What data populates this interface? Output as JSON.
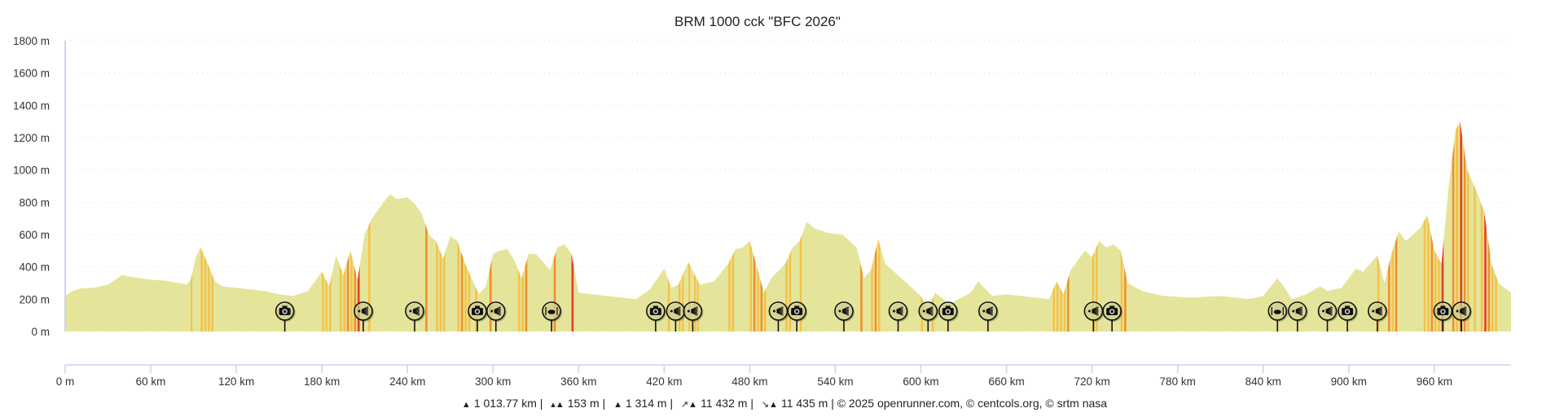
{
  "colors": {
    "fill": "#e4e59a",
    "mild": "#f4c24a",
    "steep": "#f0902c",
    "very_steep": "#e63e26",
    "axis": "#c9d5ee",
    "grid": "#dddddd"
  },
  "chart_data": {
    "type": "area",
    "title": "BRM 1000 cck \"BFC 2026\"",
    "xlabel": "",
    "ylabel": "",
    "xlim": [
      0,
      1013.77
    ],
    "ylim": [
      0,
      1800
    ],
    "grid": true,
    "xticks": [
      0,
      60,
      120,
      180,
      240,
      300,
      360,
      420,
      480,
      540,
      600,
      660,
      720,
      780,
      840,
      900,
      960
    ],
    "xtick_labels": [
      "0 m",
      "60 km",
      "120 km",
      "180 km",
      "240 km",
      "300 km",
      "360 km",
      "420 km",
      "480 km",
      "540 km",
      "600 km",
      "660 km",
      "720 km",
      "780 km",
      "840 km",
      "900 km",
      "960 km"
    ],
    "yticks": [
      0,
      200,
      400,
      600,
      800,
      1000,
      1200,
      1400,
      1600,
      1800
    ],
    "ytick_labels": [
      "0 m",
      "200 m",
      "400 m",
      "600 m",
      "800 m",
      "1000 m",
      "1200 m",
      "1400 m",
      "1600 m",
      "1800 m"
    ],
    "x": [
      0,
      5,
      10,
      20,
      30,
      40,
      45,
      60,
      70,
      80,
      85,
      88,
      92,
      95,
      100,
      105,
      110,
      120,
      140,
      150,
      160,
      170,
      180,
      185,
      190,
      195,
      200,
      205,
      210,
      215,
      220,
      225,
      228,
      232,
      240,
      245,
      250,
      255,
      260,
      265,
      270,
      275,
      280,
      290,
      295,
      300,
      305,
      310,
      315,
      320,
      325,
      330,
      340,
      345,
      350,
      355,
      360,
      380,
      400,
      410,
      420,
      425,
      430,
      437,
      445,
      455,
      465,
      470,
      475,
      480,
      485,
      490,
      495,
      505,
      510,
      515,
      520,
      525,
      535,
      545,
      555,
      560,
      565,
      570,
      575,
      585,
      595,
      600,
      605,
      610,
      620,
      635,
      640,
      650,
      660,
      680,
      690,
      695,
      700,
      705,
      710,
      715,
      720,
      725,
      730,
      735,
      740,
      745,
      755,
      770,
      790,
      810,
      830,
      840,
      850,
      855,
      860,
      870,
      880,
      885,
      895,
      905,
      910,
      920,
      925,
      930,
      935,
      940,
      950,
      955,
      960,
      965,
      970,
      975,
      978,
      983,
      990,
      995,
      1000,
      1005,
      1013.77
    ],
    "y": [
      220,
      250,
      265,
      270,
      290,
      350,
      340,
      320,
      315,
      300,
      290,
      320,
      470,
      520,
      420,
      310,
      280,
      270,
      250,
      230,
      220,
      250,
      370,
      280,
      470,
      350,
      500,
      320,
      600,
      700,
      760,
      820,
      850,
      820,
      830,
      790,
      730,
      600,
      560,
      450,
      590,
      560,
      430,
      230,
      280,
      480,
      500,
      510,
      440,
      330,
      480,
      480,
      380,
      520,
      540,
      480,
      240,
      220,
      200,
      260,
      390,
      270,
      290,
      430,
      290,
      310,
      420,
      510,
      520,
      560,
      400,
      240,
      330,
      420,
      520,
      560,
      680,
      640,
      610,
      600,
      520,
      330,
      380,
      570,
      420,
      340,
      260,
      220,
      140,
      240,
      170,
      240,
      310,
      220,
      230,
      210,
      200,
      310,
      230,
      380,
      440,
      500,
      460,
      560,
      520,
      540,
      500,
      300,
      250,
      220,
      210,
      220,
      200,
      220,
      330,
      270,
      200,
      230,
      280,
      250,
      270,
      390,
      370,
      470,
      300,
      480,
      620,
      560,
      640,
      720,
      500,
      420,
      900,
      1250,
      1300,
      1000,
      860,
      740,
      420,
      300,
      240
    ],
    "markers": [
      {
        "km": 154,
        "type": "camera-icon"
      },
      {
        "km": 209,
        "type": "viewpoint-icon"
      },
      {
        "km": 245,
        "type": "viewpoint-icon"
      },
      {
        "km": 289,
        "type": "camera-icon"
      },
      {
        "km": 302,
        "type": "viewpoint-icon"
      },
      {
        "km": 341,
        "type": "restaurant-icon"
      },
      {
        "km": 414,
        "type": "camera-icon"
      },
      {
        "km": 428,
        "type": "viewpoint-icon"
      },
      {
        "km": 440,
        "type": "viewpoint-icon"
      },
      {
        "km": 500,
        "type": "viewpoint-icon"
      },
      {
        "km": 513,
        "type": "camera-icon"
      },
      {
        "km": 546,
        "type": "viewpoint-icon"
      },
      {
        "km": 584,
        "type": "viewpoint-icon"
      },
      {
        "km": 605,
        "type": "viewpoint-icon"
      },
      {
        "km": 619,
        "type": "camera-icon"
      },
      {
        "km": 647,
        "type": "viewpoint-icon"
      },
      {
        "km": 721,
        "type": "viewpoint-icon"
      },
      {
        "km": 734,
        "type": "camera-icon"
      },
      {
        "km": 850,
        "type": "restaurant-icon"
      },
      {
        "km": 864,
        "type": "viewpoint-icon"
      },
      {
        "km": 885,
        "type": "viewpoint-icon"
      },
      {
        "km": 899,
        "type": "camera-icon"
      },
      {
        "km": 920,
        "type": "viewpoint-icon"
      },
      {
        "km": 966,
        "type": "camera-icon"
      },
      {
        "km": 979,
        "type": "viewpoint-icon"
      }
    ]
  },
  "footer": {
    "distance": "1 013.77 km",
    "min_altitude": "153 m",
    "max_altitude": "1 314 m",
    "elevation_gain": "11 432 m",
    "elevation_loss": "11 435 m",
    "credits": "© 2025 openrunner.com, © centcols.org, © srtm nasa",
    "sep": "|"
  }
}
